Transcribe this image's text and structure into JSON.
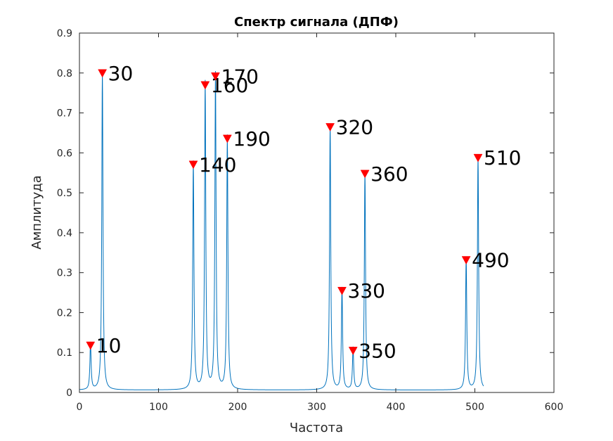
{
  "chart_data": {
    "type": "line",
    "title": "Спектр сигнала (ДПФ)",
    "xlabel": "Частота",
    "ylabel": "Амплитуда",
    "xlim": [
      0,
      600
    ],
    "ylim": [
      0,
      0.9
    ],
    "xticks": [
      "0",
      "100",
      "200",
      "300",
      "400",
      "500",
      "600"
    ],
    "yticks": [
      "0",
      "0.1",
      "0.2",
      "0.3",
      "0.4",
      "0.5",
      "0.6",
      "0.7",
      "0.8",
      "0.9"
    ],
    "grid": false,
    "x_range": [
      0,
      511
    ],
    "baseline": 0.006,
    "line_color": "#0072BD",
    "marker_color": "#ff0000",
    "peaks": [
      {
        "x": 14,
        "y": 0.118,
        "label": "10",
        "marker_x": 14,
        "marker_y": 0.118
      },
      {
        "x": 29,
        "y": 0.8,
        "label": "30",
        "marker_x": 29,
        "marker_y": 0.8
      },
      {
        "x": 144,
        "y": 0.571,
        "label": "140",
        "marker_x": 144,
        "marker_y": 0.571
      },
      {
        "x": 159,
        "y": 0.77,
        "label": "160",
        "marker_x": 159,
        "marker_y": 0.77
      },
      {
        "x": 172,
        "y": 0.792,
        "label": "170",
        "marker_x": 172,
        "marker_y": 0.792
      },
      {
        "x": 187,
        "y": 0.636,
        "label": "190",
        "marker_x": 187,
        "marker_y": 0.636
      },
      {
        "x": 317,
        "y": 0.665,
        "label": "320",
        "marker_x": 317,
        "marker_y": 0.665
      },
      {
        "x": 332,
        "y": 0.255,
        "label": "330",
        "marker_x": 332,
        "marker_y": 0.255
      },
      {
        "x": 346,
        "y": 0.105,
        "label": "350",
        "marker_x": 346,
        "marker_y": 0.105
      },
      {
        "x": 361,
        "y": 0.548,
        "label": "360",
        "marker_x": 361,
        "marker_y": 0.548
      },
      {
        "x": 489,
        "y": 0.332,
        "label": "490",
        "marker_x": 489,
        "marker_y": 0.332
      },
      {
        "x": 504,
        "y": 0.588,
        "label": "510",
        "marker_x": 504,
        "marker_y": 0.588
      }
    ]
  }
}
